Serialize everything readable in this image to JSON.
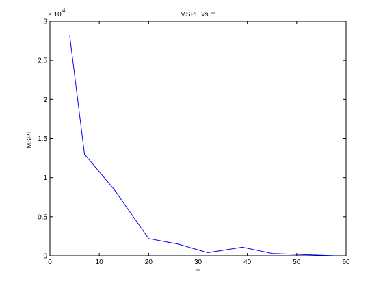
{
  "chart_data": {
    "type": "line",
    "title": "MSPE vs m",
    "xlabel": "m",
    "ylabel": "MSPE",
    "xlim": [
      0,
      60
    ],
    "ylim": [
      0,
      3
    ],
    "y_exponent_label": "× 10",
    "y_exponent_power": "4",
    "xticks": [
      "0",
      "10",
      "20",
      "30",
      "40",
      "50",
      "60"
    ],
    "yticks": [
      "0",
      "0.5",
      "1",
      "1.5",
      "2",
      "2.5",
      "3"
    ],
    "grid": false,
    "series": [
      {
        "color": "#0000ff",
        "x": [
          4,
          7,
          13,
          20,
          26,
          32,
          39,
          45,
          51,
          58
        ],
        "y": [
          2.82,
          1.3,
          0.85,
          0.22,
          0.15,
          0.04,
          0.11,
          0.03,
          0.015,
          0.0
        ]
      }
    ]
  }
}
